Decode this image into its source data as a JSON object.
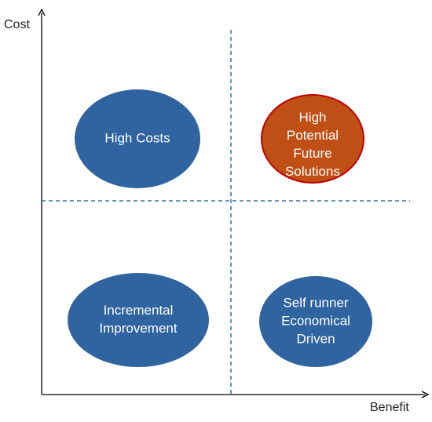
{
  "axes": {
    "y_label": "Cost",
    "x_label": "Benefit"
  },
  "nodes": [
    {
      "lines": [
        "High Costs"
      ]
    },
    {
      "lines": [
        "High",
        "Potential",
        "Future",
        "Solutions"
      ]
    },
    {
      "lines": [
        "Incremental",
        "Improvement"
      ]
    },
    {
      "lines": [
        "Self runner",
        "Economical",
        "Driven"
      ]
    }
  ]
}
